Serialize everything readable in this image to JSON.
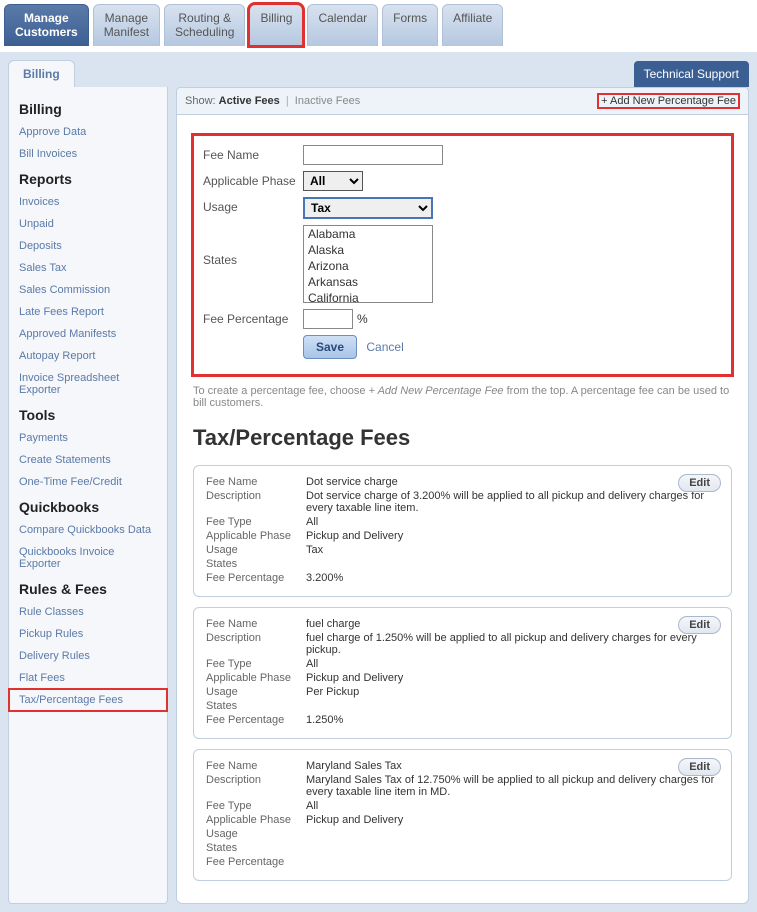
{
  "topnav": {
    "tabs": [
      {
        "label": "Manage\nCustomers",
        "active": true
      },
      {
        "label": "Manage\nManifest"
      },
      {
        "label": "Routing &\nScheduling"
      },
      {
        "label": "Billing",
        "highlight": true
      },
      {
        "label": "Calendar"
      },
      {
        "label": "Forms"
      },
      {
        "label": "Affiliate"
      }
    ]
  },
  "subtab": "Billing",
  "tech_support": "Technical Support",
  "sidebar": {
    "groups": [
      {
        "title": "Billing",
        "links": [
          "Approve Data",
          "Bill Invoices"
        ]
      },
      {
        "title": "Reports",
        "links": [
          "Invoices",
          "Unpaid",
          "Deposits",
          "Sales Tax",
          "Sales Commission",
          "Late Fees Report",
          "Approved Manifests",
          "Autopay Report",
          "Invoice Spreadsheet Exporter"
        ]
      },
      {
        "title": "Tools",
        "links": [
          "Payments",
          "Create Statements",
          "One-Time Fee/Credit"
        ]
      },
      {
        "title": "Quickbooks",
        "links": [
          "Compare Quickbooks Data",
          "Quickbooks Invoice Exporter"
        ]
      },
      {
        "title": "Rules & Fees",
        "links": [
          "Rule Classes",
          "Pickup Rules",
          "Delivery Rules",
          "Flat Fees",
          "Tax/Percentage Fees"
        ],
        "highlight_idx": 4
      }
    ]
  },
  "show_bar": {
    "prefix": "Show:",
    "active": "Active Fees",
    "inactive": "Inactive Fees",
    "add_new": "+ Add New Percentage Fee"
  },
  "form": {
    "fee_name_label": "Fee Name",
    "fee_name_value": "",
    "phase_label": "Applicable Phase",
    "phase_value": "All",
    "usage_label": "Usage",
    "usage_value": "Tax",
    "states_label": "States",
    "states_options": [
      "Alabama",
      "Alaska",
      "Arizona",
      "Arkansas",
      "California"
    ],
    "pct_label": "Fee Percentage",
    "pct_value": "",
    "pct_sign": "%",
    "save": "Save",
    "cancel": "Cancel"
  },
  "hint_prefix": "To create a percentage fee, choose ",
  "hint_em": "+ Add New Percentage Fee",
  "hint_suffix": " from the top. A percentage fee can be used to bill customers.",
  "section_title": "Tax/Percentage Fees",
  "fee_fields": {
    "name": "Fee Name",
    "desc": "Description",
    "type": "Fee Type",
    "phase": "Applicable Phase",
    "usage": "Usage",
    "states": "States",
    "pct": "Fee Percentage"
  },
  "edit_label": "Edit",
  "fees": [
    {
      "name": "Dot service charge",
      "desc": "Dot service charge of 3.200% will be applied to all pickup and delivery charges for every taxable line item.",
      "type": "All",
      "phase": "Pickup and Delivery",
      "usage": "Tax",
      "states": "",
      "pct": "3.200%"
    },
    {
      "name": "fuel charge",
      "desc": "fuel charge of 1.250% will be applied to all pickup and delivery charges for every pickup.",
      "type": "All",
      "phase": "Pickup and Delivery",
      "usage": "Per Pickup",
      "states": "",
      "pct": "1.250%"
    },
    {
      "name": "Maryland Sales Tax",
      "desc": "Maryland Sales Tax of 12.750% will be applied to all pickup and delivery charges for every taxable line item in MD.",
      "type": "All",
      "phase": "Pickup and Delivery",
      "usage": "",
      "states": "",
      "pct": ""
    }
  ],
  "colors": {
    "highlight": "#e03030",
    "nav_active_bg": "#3c5f93",
    "nav_inactive_bg": "#b5c8e0",
    "page_bg": "#d9e4f0",
    "panel_border": "#c0cee0",
    "link": "#5b7aa8"
  }
}
